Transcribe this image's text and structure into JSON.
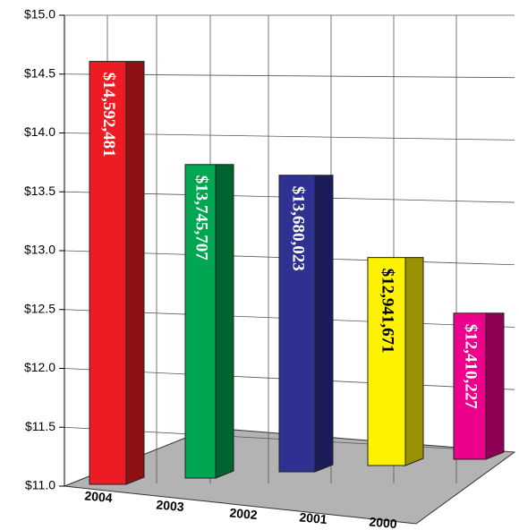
{
  "chart_data": {
    "type": "bar3d",
    "categories": [
      "2004",
      "2003",
      "2002",
      "2001",
      "2000"
    ],
    "values": [
      14.592481,
      13.745707,
      13.680023,
      12.941671,
      12.410227
    ],
    "value_labels": [
      "$14,592,481",
      "$13,745,707",
      "$13,680,023",
      "$12,941,671",
      "$12,410,227"
    ],
    "colors": [
      "#ed1c24",
      "#00a651",
      "#2e3192",
      "#fff200",
      "#ec008c"
    ],
    "ylim": [
      11.0,
      15.0
    ],
    "yticks": [
      {
        "value": 11.0,
        "label": "$11.0"
      },
      {
        "value": 11.5,
        "label": "$11.5"
      },
      {
        "value": 12.0,
        "label": "$12.0"
      },
      {
        "value": 12.5,
        "label": "$12.5"
      },
      {
        "value": 13.0,
        "label": "$13.0"
      },
      {
        "value": 13.5,
        "label": "$13.5"
      },
      {
        "value": 14.0,
        "label": "$14.0"
      },
      {
        "value": 14.5,
        "label": "$14.5"
      },
      {
        "value": 15.0,
        "label": "$15.0"
      }
    ],
    "grid": true
  }
}
